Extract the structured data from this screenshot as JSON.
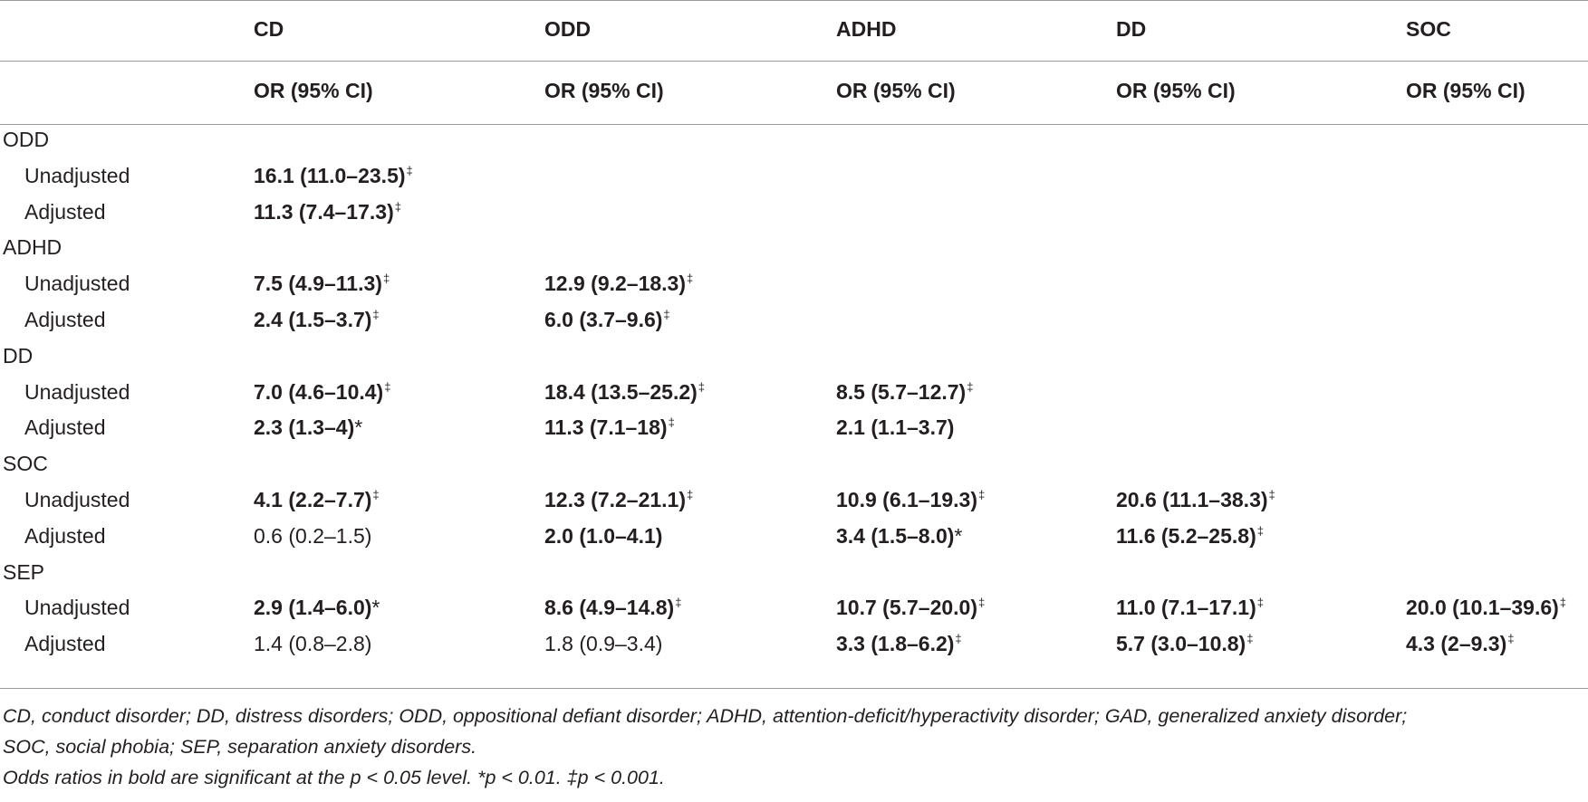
{
  "table": {
    "headers": [
      "CD",
      "ODD",
      "ADHD",
      "DD",
      "SOC"
    ],
    "subheader": "OR (95% CI)",
    "groups": [
      {
        "label": "ODD",
        "unadjusted_label": "Unadjusted",
        "adjusted_label": "Adjusted",
        "unadjusted": [
          {
            "value": "16.1 (11.0–23.5)",
            "mark": "‡",
            "bold": true
          }
        ],
        "adjusted": [
          {
            "value": "11.3 (7.4–17.3)",
            "mark": "‡",
            "bold": true
          }
        ]
      },
      {
        "label": "ADHD",
        "unadjusted_label": "Unadjusted",
        "adjusted_label": "Adjusted",
        "unadjusted": [
          {
            "value": "7.5 (4.9–11.3)",
            "mark": "‡",
            "bold": true
          },
          {
            "value": "12.9 (9.2–18.3)",
            "mark": "‡",
            "bold": true
          }
        ],
        "adjusted": [
          {
            "value": "2.4 (1.5–3.7)",
            "mark": "‡",
            "bold": true
          },
          {
            "value": "6.0 (3.7–9.6)",
            "mark": "‡",
            "bold": true
          }
        ]
      },
      {
        "label": "DD",
        "unadjusted_label": "Unadjusted",
        "adjusted_label": "Adjusted",
        "unadjusted": [
          {
            "value": "7.0 (4.6–10.4)",
            "mark": "‡",
            "bold": true
          },
          {
            "value": "18.4 (13.5–25.2)",
            "mark": "‡",
            "bold": true
          },
          {
            "value": "8.5 (5.7–12.7)",
            "mark": "‡",
            "bold": true
          }
        ],
        "adjusted": [
          {
            "value": "2.3 (1.3–4)",
            "mark": "*",
            "bold": true
          },
          {
            "value": "11.3 (7.1–18)",
            "mark": "‡",
            "bold": true
          },
          {
            "value": "2.1 (1.1–3.7)",
            "mark": "",
            "bold": true
          }
        ]
      },
      {
        "label": "SOC",
        "unadjusted_label": "Unadjusted",
        "adjusted_label": "Adjusted",
        "unadjusted": [
          {
            "value": "4.1 (2.2–7.7)",
            "mark": "‡",
            "bold": true
          },
          {
            "value": "12.3 (7.2–21.1)",
            "mark": "‡",
            "bold": true
          },
          {
            "value": "10.9 (6.1–19.3)",
            "mark": "‡",
            "bold": true
          },
          {
            "value": "20.6 (11.1–38.3)",
            "mark": "‡",
            "bold": true
          }
        ],
        "adjusted": [
          {
            "value": "0.6 (0.2–1.5)",
            "mark": "",
            "bold": false
          },
          {
            "value": "2.0 (1.0–4.1)",
            "mark": "",
            "bold": true
          },
          {
            "value": "3.4 (1.5–8.0)",
            "mark": "*",
            "bold": true
          },
          {
            "value": "11.6 (5.2–25.8)",
            "mark": "‡",
            "bold": true
          }
        ]
      },
      {
        "label": "SEP",
        "unadjusted_label": "Unadjusted",
        "adjusted_label": "Adjusted",
        "unadjusted": [
          {
            "value": "2.9 (1.4–6.0)",
            "mark": "*",
            "bold": true
          },
          {
            "value": "8.6 (4.9–14.8)",
            "mark": "‡",
            "bold": true
          },
          {
            "value": "10.7 (5.7–20.0)",
            "mark": "‡",
            "bold": true
          },
          {
            "value": "11.0 (7.1–17.1)",
            "mark": "‡",
            "bold": true
          },
          {
            "value": "20.0 (10.1–39.6)",
            "mark": "‡",
            "bold": true
          }
        ],
        "adjusted": [
          {
            "value": "1.4 (0.8–2.8)",
            "mark": "",
            "bold": false
          },
          {
            "value": "1.8 (0.9–3.4)",
            "mark": "",
            "bold": false
          },
          {
            "value": "3.3 (1.8–6.2)",
            "mark": "‡",
            "bold": true
          },
          {
            "value": "5.7 (3.0–10.8)",
            "mark": "‡",
            "bold": true
          },
          {
            "value": "4.3 (2–9.3)",
            "mark": "‡",
            "bold": true
          }
        ]
      }
    ]
  },
  "footnotes": {
    "line1": "CD, conduct disorder; DD, distress disorders; ODD, oppositional defiant disorder; ADHD, attention-deficit/hyperactivity disorder; GAD, generalized anxiety disorder;",
    "line2": "SOC, social phobia; SEP, separation anxiety disorders.",
    "line3": "Odds ratios in bold are significant at the p < 0.05 level. *p < 0.01. ‡p < 0.001."
  }
}
